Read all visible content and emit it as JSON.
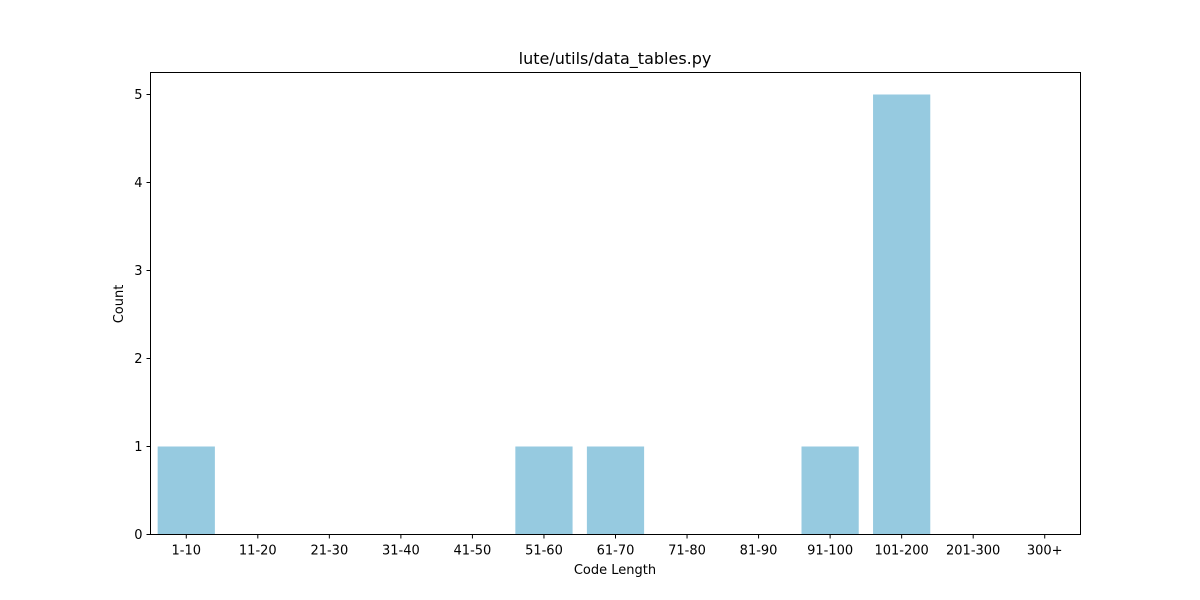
{
  "chart_data": {
    "type": "bar",
    "title": "lute/utils/data_tables.py",
    "xlabel": "Code Length",
    "ylabel": "Count",
    "categories": [
      "1-10",
      "11-20",
      "21-30",
      "31-40",
      "41-50",
      "51-60",
      "61-70",
      "71-80",
      "81-90",
      "91-100",
      "101-200",
      "201-300",
      "300+"
    ],
    "values": [
      1,
      0,
      0,
      0,
      0,
      1,
      1,
      0,
      0,
      1,
      5,
      0,
      0
    ],
    "ylim": [
      0,
      5.25
    ],
    "yticks": [
      0,
      1,
      2,
      3,
      4,
      5
    ],
    "grid": false,
    "bar_color": "#96CAE0"
  }
}
